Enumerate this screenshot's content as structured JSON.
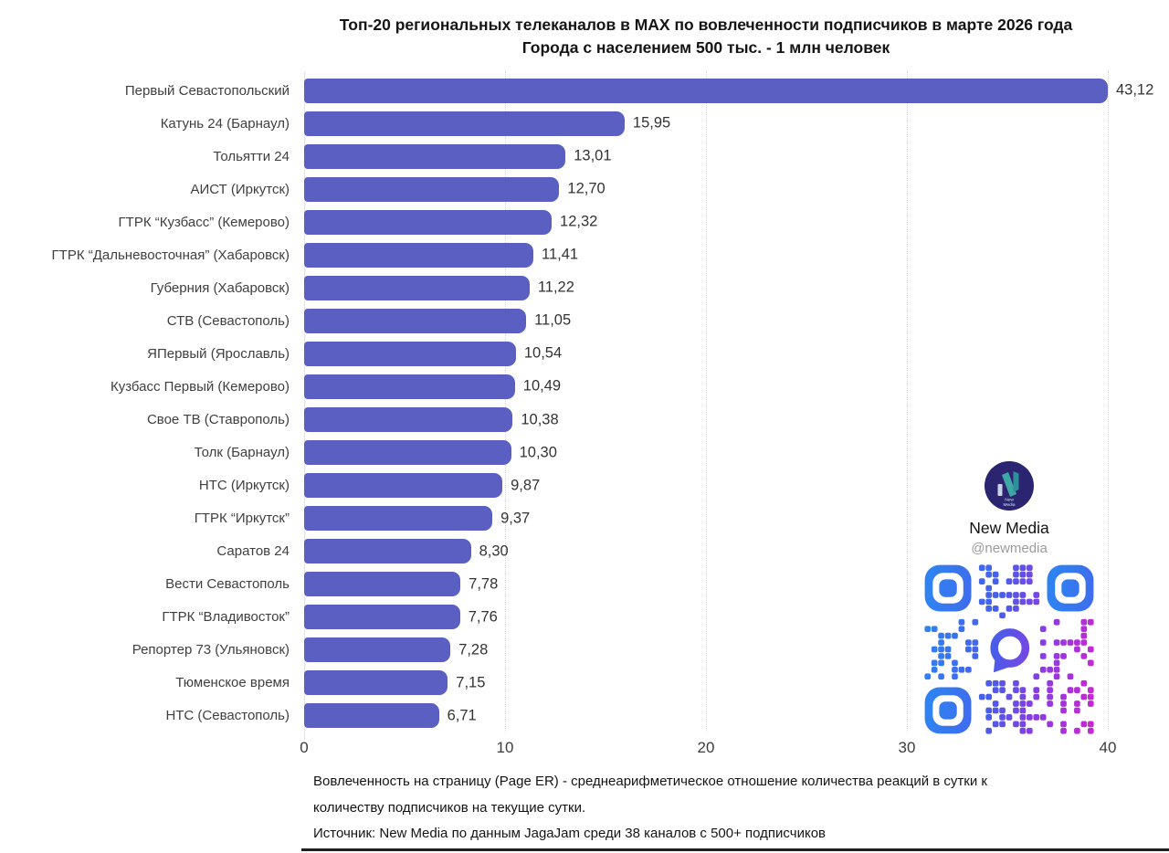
{
  "chart_data": {
    "type": "bar",
    "orientation": "horizontal",
    "title": "Топ-20 региональных телеканалов в MAX по вовлеченности подписчиков в марте 2026 года",
    "subtitle": "Города с населением 500 тыс. - 1 млн человек",
    "categories": [
      "Первый Севастопольский",
      "Катунь 24 (Барнаул)",
      "Тольятти 24",
      "АИСТ (Иркутск)",
      "ГТРК “Кузбасс” (Кемерово)",
      "ГТРК “Дальневосточная” (Хабаровск)",
      "Губерния (Хабаровск)",
      "СТВ (Севастополь)",
      "ЯПервый (Ярославль)",
      "Кузбасс Первый (Кемерово)",
      "Свое ТВ (Ставрополь)",
      "Толк (Барнаул)",
      "НТС (Иркутск)",
      "ГТРК “Иркутск”",
      "Саратов 24",
      "Вести Севастополь",
      "ГТРК “Владивосток”",
      "Репортер 73 (Ульяновск)",
      "Тюменское время",
      "НТС (Севастополь)"
    ],
    "values": [
      43.12,
      15.95,
      13.01,
      12.7,
      12.32,
      11.41,
      11.22,
      11.05,
      10.54,
      10.49,
      10.38,
      10.3,
      9.87,
      9.37,
      8.3,
      7.78,
      7.76,
      7.28,
      7.15,
      6.71
    ],
    "value_labels": [
      "43,12",
      "15,95",
      "13,01",
      "12,70",
      "12,32",
      "11,41",
      "11,22",
      "11,05",
      "10,54",
      "10,49",
      "10,38",
      "10,30",
      "9,87",
      "9,37",
      "8,30",
      "7,78",
      "7,76",
      "7,28",
      "7,15",
      "6,71"
    ],
    "xlabel": "",
    "ylabel": "",
    "xlim": [
      0,
      40
    ],
    "x_ticks": [
      0,
      10,
      20,
      30,
      40
    ],
    "grid": "vertical-dotted",
    "legend": "none",
    "bar_color": "#5a5fc1"
  },
  "branding": {
    "name": "New Media",
    "handle": "@newmedia",
    "logo_line1": "New",
    "logo_line2": "Media",
    "logo_bg": "#2b2470",
    "logo_accent": "#3fa8a4",
    "logo_accent2": "#2f8f9b",
    "logo_light": "#ccd3e8",
    "logo_text_color": "#cfe9e7"
  },
  "qr": {
    "gradient_stops": [
      "#2f82f2",
      "#4a5cea",
      "#8a3ce2",
      "#c32ad2"
    ]
  },
  "footnote": {
    "line1": "Вовлеченность на страницу (Page ER) - среднеарифметическое отношение количества реакций в сутки к",
    "line2": "количеству подписчиков на текущие сутки.",
    "line3": "Источник: New Media по данным JagaJam среди 38 каналов с 500+ подписчиков"
  }
}
